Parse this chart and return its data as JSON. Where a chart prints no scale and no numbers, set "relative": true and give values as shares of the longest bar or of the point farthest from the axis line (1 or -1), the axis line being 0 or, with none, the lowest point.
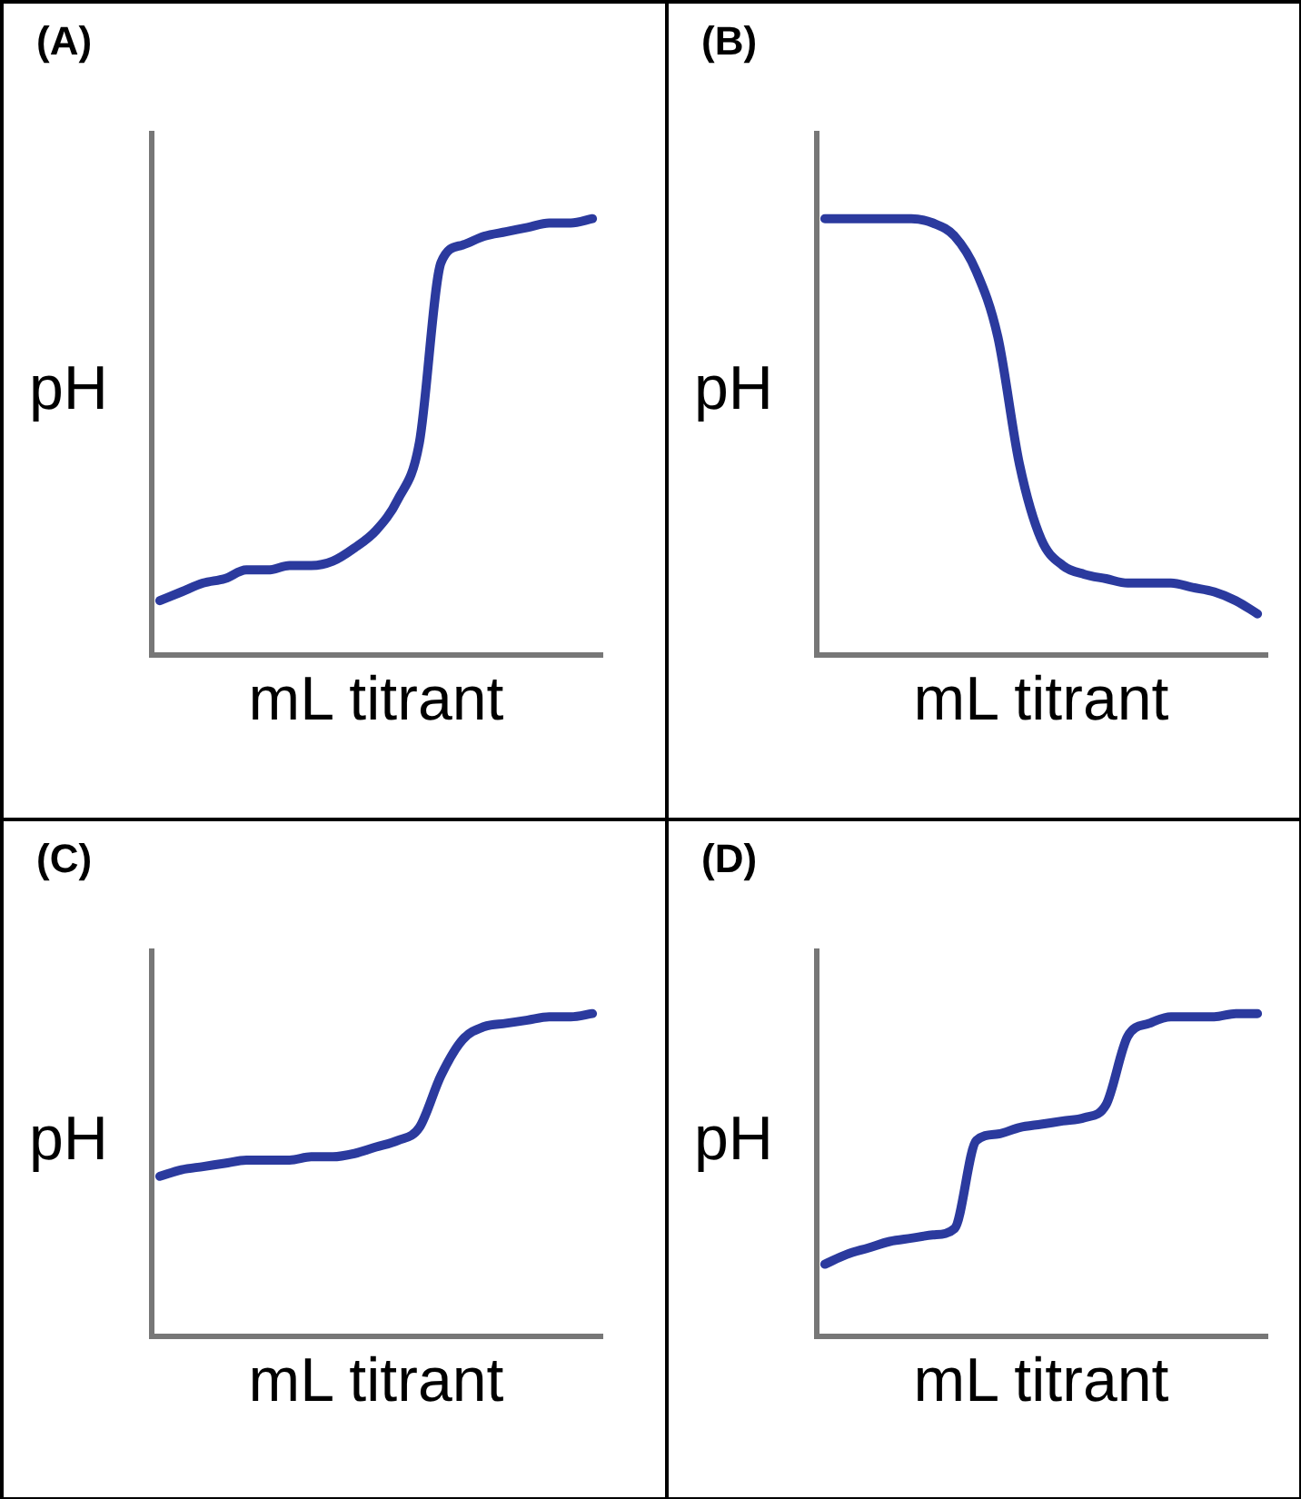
{
  "chart_data": [
    {
      "type": "line",
      "title": "(A)",
      "xlabel": "mL titrant",
      "ylabel": "pH",
      "relative": true,
      "categories": [
        null,
        null,
        null,
        null,
        null,
        null,
        null,
        null,
        null,
        null,
        null,
        null,
        null,
        null,
        null,
        null,
        null,
        null,
        null,
        null,
        null
      ],
      "series": [
        {
          "color": "#2b3a9e",
          "values": [
            0.13,
            0.15,
            0.17,
            0.18,
            0.2,
            0.2,
            0.21,
            0.21,
            0.22,
            0.25,
            0.29,
            0.36,
            0.49,
            0.9,
            0.94,
            0.96,
            0.97,
            0.98,
            0.99,
            0.99,
            1
          ]
        }
      ]
    },
    {
      "type": "line",
      "title": "(B)",
      "xlabel": "mL titrant",
      "ylabel": "pH",
      "relative": true,
      "categories": [
        null,
        null,
        null,
        null,
        null,
        null,
        null,
        null,
        null,
        null,
        null,
        null,
        null,
        null,
        null,
        null,
        null,
        null,
        null,
        null,
        null
      ],
      "series": [
        {
          "color": "#2b3a9e",
          "values": [
            1,
            1,
            1,
            1,
            1,
            0.99,
            0.96,
            0.88,
            0.73,
            0.44,
            0.27,
            0.21,
            0.19,
            0.18,
            0.17,
            0.17,
            0.17,
            0.16,
            0.15,
            0.13,
            0.1
          ]
        }
      ]
    },
    {
      "type": "line",
      "title": "(C)",
      "xlabel": "mL titrant",
      "ylabel": "pH",
      "relative": true,
      "categories": [
        null,
        null,
        null,
        null,
        null,
        null,
        null,
        null,
        null,
        null,
        null,
        null,
        null,
        null,
        null,
        null,
        null,
        null,
        null,
        null,
        null
      ],
      "series": [
        {
          "color": "#2b3a9e",
          "values": [
            0.5,
            0.52,
            0.53,
            0.54,
            0.55,
            0.55,
            0.55,
            0.56,
            0.56,
            0.57,
            0.59,
            0.61,
            0.65,
            0.81,
            0.92,
            0.96,
            0.97,
            0.98,
            0.99,
            0.99,
            1
          ]
        }
      ]
    },
    {
      "type": "line",
      "title": "(D)",
      "xlabel": "mL titrant",
      "ylabel": "pH",
      "relative": true,
      "categories": [
        null,
        null,
        null,
        null,
        null,
        null,
        null,
        null,
        null,
        null,
        null,
        null,
        null,
        null,
        null,
        null,
        null,
        null,
        null,
        null,
        null
      ],
      "series": [
        {
          "color": "#2b3a9e",
          "values": [
            0.23,
            0.26,
            0.28,
            0.3,
            0.31,
            0.32,
            0.34,
            0.61,
            0.63,
            0.65,
            0.66,
            0.67,
            0.68,
            0.72,
            0.93,
            0.97,
            0.99,
            0.99,
            0.99,
            1,
            1
          ]
        }
      ]
    }
  ]
}
